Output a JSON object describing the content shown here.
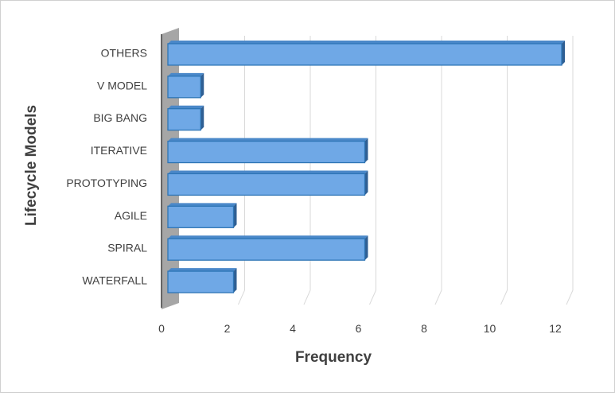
{
  "chart_data": {
    "type": "bar",
    "orientation": "horizontal",
    "style": "3d",
    "categories": [
      "WATERFALL",
      "SPIRAL",
      "AGILE",
      "PROTOTYPING",
      "ITERATIVE",
      "BIG BANG",
      "V MODEL",
      "OTHERS"
    ],
    "values": [
      2,
      6,
      2,
      6,
      6,
      1,
      1,
      12
    ],
    "xlabel": "Frequency",
    "ylabel": "Lifecycle Models",
    "xlim": [
      0,
      12
    ],
    "xticks": [
      "0",
      "2",
      "4",
      "6",
      "8",
      "10",
      "12"
    ],
    "grid": true,
    "legend": "none",
    "colors": {
      "bar": "#6fa8e6",
      "bar_edge": "#2e75b6",
      "bar_top": "#4a88c9",
      "bar_side": "#2f5f93",
      "wall": "#a6a6a6",
      "grid": "#d9d9d9"
    }
  }
}
